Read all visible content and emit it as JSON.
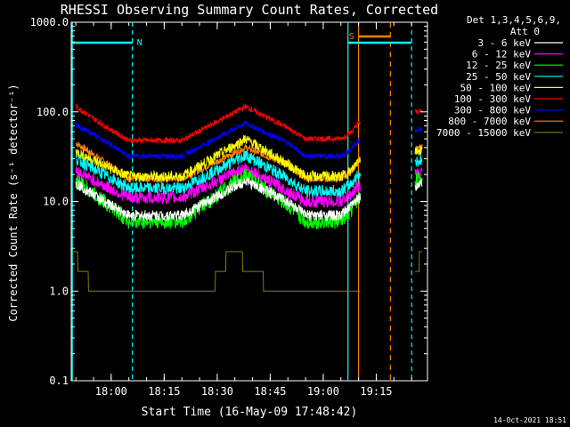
{
  "chart_data": {
    "type": "line",
    "title": "RHESSI Observing Summary Count Rates, Corrected",
    "xlabel": "Start Time (16-May-09 17:48:42)",
    "ylabel": "Corrected Count Rate (s⁻¹ detector⁻¹)",
    "y_scale": "log",
    "ylim": [
      0.1,
      1000
    ],
    "xlim": [
      "17:48:42",
      "19:29:30"
    ],
    "x_ticks": [
      "18:00",
      "18:15",
      "18:30",
      "18:45",
      "19:00",
      "19:15"
    ],
    "y_ticks": [
      "0.1",
      "1.0",
      "10.0",
      "100.0",
      "1000.0"
    ],
    "legend_position": "top-right",
    "legend_header": [
      "Det 1,3,4,5,6,9,",
      "Att 0"
    ],
    "series": [
      {
        "name": "3 - 6 keV",
        "color": "#ffffff",
        "points": [
          [
            "17:50",
            16
          ],
          [
            "17:58",
            10
          ],
          [
            "18:05",
            7
          ],
          [
            "18:20",
            7
          ],
          [
            "18:38",
            17
          ],
          [
            "18:50",
            10
          ],
          [
            "18:55",
            7
          ],
          [
            "19:05",
            7
          ],
          [
            "19:08",
            9
          ],
          [
            "19:10",
            11
          ],
          [
            "19:26",
            15
          ],
          [
            "19:28",
            16
          ]
        ]
      },
      {
        "name": "6 - 12 keV",
        "color": "#ff00ff",
        "points": [
          [
            "17:50",
            22
          ],
          [
            "17:58",
            15
          ],
          [
            "18:05",
            11
          ],
          [
            "18:20",
            11
          ],
          [
            "18:38",
            24
          ],
          [
            "18:50",
            13
          ],
          [
            "18:55",
            10
          ],
          [
            "19:05",
            10
          ],
          [
            "19:08",
            12
          ],
          [
            "19:10",
            15
          ],
          [
            "19:26",
            20
          ],
          [
            "19:28",
            21
          ]
        ]
      },
      {
        "name": "12 - 25 keV",
        "color": "#00ff00",
        "points": [
          [
            "17:50",
            17
          ],
          [
            "17:58",
            10
          ],
          [
            "18:05",
            6
          ],
          [
            "18:20",
            6
          ],
          [
            "18:38",
            20
          ],
          [
            "18:50",
            9
          ],
          [
            "18:55",
            6
          ],
          [
            "19:05",
            6
          ],
          [
            "19:08",
            8
          ],
          [
            "19:10",
            11
          ],
          [
            "19:26",
            17
          ],
          [
            "19:28",
            18
          ]
        ]
      },
      {
        "name": "25 - 50 keV",
        "color": "#00ffff",
        "points": [
          [
            "17:50",
            30
          ],
          [
            "17:58",
            20
          ],
          [
            "18:05",
            14
          ],
          [
            "18:20",
            14
          ],
          [
            "18:38",
            33
          ],
          [
            "18:50",
            18
          ],
          [
            "18:55",
            13
          ],
          [
            "19:05",
            13
          ],
          [
            "19:08",
            16
          ],
          [
            "19:10",
            20
          ],
          [
            "19:26",
            28
          ],
          [
            "19:28",
            29
          ]
        ]
      },
      {
        "name": "50 - 100 keV",
        "color": "#ffff00",
        "points": [
          [
            "17:50",
            36
          ],
          [
            "17:58",
            25
          ],
          [
            "18:05",
            19
          ],
          [
            "18:20",
            19
          ],
          [
            "18:38",
            50
          ],
          [
            "18:50",
            26
          ],
          [
            "18:55",
            19
          ],
          [
            "19:05",
            19
          ],
          [
            "19:08",
            22
          ],
          [
            "19:10",
            30
          ],
          [
            "19:26",
            37
          ],
          [
            "19:28",
            38
          ]
        ]
      },
      {
        "name": "100 - 300 keV",
        "color": "#ff0000",
        "points": [
          [
            "17:50",
            115
          ],
          [
            "17:58",
            70
          ],
          [
            "18:05",
            48
          ],
          [
            "18:20",
            48
          ],
          [
            "18:38",
            115
          ],
          [
            "18:50",
            66
          ],
          [
            "18:55",
            50
          ],
          [
            "19:05",
            50
          ],
          [
            "19:08",
            60
          ],
          [
            "19:10",
            75
          ],
          [
            "19:26",
            100
          ],
          [
            "19:28",
            102
          ]
        ]
      },
      {
        "name": "300 - 800 keV",
        "color": "#0000ff",
        "points": [
          [
            "17:50",
            72
          ],
          [
            "17:58",
            48
          ],
          [
            "18:05",
            32
          ],
          [
            "18:20",
            32
          ],
          [
            "18:38",
            75
          ],
          [
            "18:50",
            45
          ],
          [
            "18:55",
            32
          ],
          [
            "19:05",
            32
          ],
          [
            "19:08",
            38
          ],
          [
            "19:10",
            48
          ],
          [
            "19:26",
            62
          ],
          [
            "19:28",
            64
          ]
        ]
      },
      {
        "name": "800 - 7000 keV",
        "color": "#ff8000",
        "points": [
          [
            "17:50",
            45
          ],
          [
            "17:58",
            28
          ],
          [
            "18:05",
            18
          ],
          [
            "18:20",
            18
          ],
          [
            "18:38",
            40
          ],
          [
            "18:50",
            26
          ],
          [
            "18:55",
            18
          ],
          [
            "19:05",
            18
          ],
          [
            "19:08",
            22
          ],
          [
            "19:10",
            28
          ],
          [
            "19:26",
            38
          ],
          [
            "19:28",
            40
          ]
        ]
      },
      {
        "name": "7000 - 15000 keV",
        "color": "#808000",
        "points": [
          [
            "17:49",
            2.8
          ],
          [
            "17:55",
            1.0
          ],
          [
            "18:08",
            1.0
          ],
          [
            "18:28",
            1.0
          ],
          [
            "18:34",
            2.8
          ],
          [
            "18:46",
            1.0
          ],
          [
            "19:26",
            1.5
          ],
          [
            "19:28",
            2.8
          ]
        ]
      }
    ],
    "annotations": [
      {
        "text": "N",
        "color": "#00ffff"
      },
      {
        "text": "S",
        "color": "#ff8000"
      }
    ],
    "footer_date": "14-Oct-2021 18:51"
  }
}
